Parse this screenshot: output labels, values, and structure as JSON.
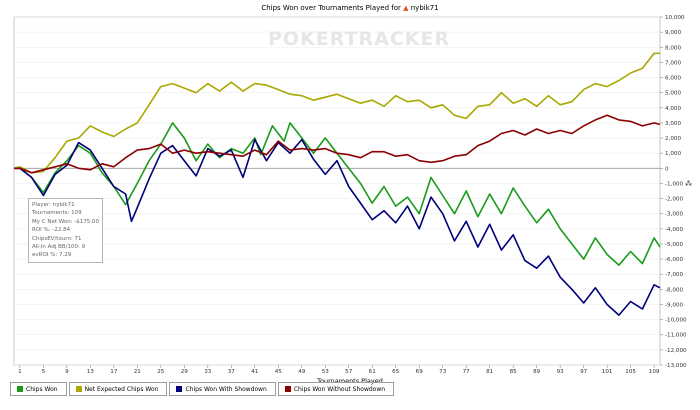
{
  "chart_data": {
    "type": "line",
    "title": "Chips Won over Tournaments Played for",
    "player_name": "nybik71",
    "xlabel": "Tournaments Played",
    "ylabel": "",
    "x_ticks": [
      1,
      5,
      9,
      13,
      17,
      21,
      25,
      29,
      33,
      37,
      41,
      45,
      49,
      53,
      57,
      61,
      65,
      69,
      73,
      77,
      81,
      85,
      89,
      93,
      97,
      101,
      105,
      109
    ],
    "xlim": [
      0,
      110
    ],
    "ylim": [
      -13000,
      10000
    ],
    "y_ticks": [
      10000,
      9000,
      8000,
      7000,
      6000,
      5000,
      4000,
      3000,
      2000,
      1000,
      0,
      -1000,
      -2000,
      -3000,
      -4000,
      -5000,
      -6000,
      -7000,
      -8000,
      -9000,
      -10000,
      -11000,
      -12000,
      -13000
    ],
    "y_tick_labels": [
      "10,000",
      "9,000",
      "8,000",
      "7,000",
      "6,000",
      "5,000",
      "4,000",
      "3,000",
      "2,000",
      "1,000",
      "0",
      "-1,000",
      "-2,000",
      "-3,000",
      "-4,000",
      "-5,000",
      "-6,000",
      "-7,000",
      "-8,000",
      "-9,000",
      "-10,000",
      "-11,000",
      "-12,000",
      "-13,000"
    ],
    "grid": true,
    "legend_position": "bottom",
    "series": [
      {
        "name": "Chips Won",
        "color": "#1a9b1a",
        "points": [
          [
            0,
            0
          ],
          [
            1,
            0
          ],
          [
            3,
            -600
          ],
          [
            5,
            -1600
          ],
          [
            7,
            -300
          ],
          [
            9,
            500
          ],
          [
            11,
            1500
          ],
          [
            13,
            1000
          ],
          [
            15,
            -300
          ],
          [
            17,
            -1200
          ],
          [
            19,
            -2400
          ],
          [
            21,
            -1000
          ],
          [
            23,
            500
          ],
          [
            25,
            1600
          ],
          [
            27,
            3000
          ],
          [
            29,
            2000
          ],
          [
            31,
            500
          ],
          [
            33,
            1600
          ],
          [
            35,
            700
          ],
          [
            37,
            1300
          ],
          [
            39,
            1000
          ],
          [
            41,
            2000
          ],
          [
            42,
            900
          ],
          [
            44,
            2800
          ],
          [
            46,
            1800
          ],
          [
            47,
            3000
          ],
          [
            49,
            2000
          ],
          [
            51,
            1000
          ],
          [
            53,
            2000
          ],
          [
            55,
            1000
          ],
          [
            57,
            0
          ],
          [
            59,
            -1000
          ],
          [
            61,
            -2300
          ],
          [
            63,
            -1200
          ],
          [
            65,
            -2500
          ],
          [
            67,
            -1900
          ],
          [
            69,
            -3000
          ],
          [
            71,
            -600
          ],
          [
            73,
            -1800
          ],
          [
            75,
            -3000
          ],
          [
            77,
            -1500
          ],
          [
            79,
            -3200
          ],
          [
            81,
            -1700
          ],
          [
            83,
            -3000
          ],
          [
            85,
            -1300
          ],
          [
            87,
            -2500
          ],
          [
            89,
            -3600
          ],
          [
            91,
            -2700
          ],
          [
            93,
            -4000
          ],
          [
            95,
            -5000
          ],
          [
            97,
            -6000
          ],
          [
            99,
            -4600
          ],
          [
            101,
            -5700
          ],
          [
            103,
            -6400
          ],
          [
            105,
            -5500
          ],
          [
            107,
            -6300
          ],
          [
            109,
            -4600
          ],
          [
            110,
            -5200
          ]
        ]
      },
      {
        "name": "Net Expected Chips Won",
        "color": "#a8a800",
        "points": [
          [
            0,
            0
          ],
          [
            1,
            100
          ],
          [
            3,
            -300
          ],
          [
            5,
            -200
          ],
          [
            7,
            700
          ],
          [
            9,
            1800
          ],
          [
            11,
            2000
          ],
          [
            13,
            2800
          ],
          [
            15,
            2400
          ],
          [
            17,
            2100
          ],
          [
            19,
            2600
          ],
          [
            21,
            3000
          ],
          [
            23,
            4200
          ],
          [
            25,
            5400
          ],
          [
            27,
            5600
          ],
          [
            29,
            5300
          ],
          [
            31,
            5000
          ],
          [
            33,
            5600
          ],
          [
            35,
            5100
          ],
          [
            37,
            5700
          ],
          [
            39,
            5100
          ],
          [
            41,
            5600
          ],
          [
            43,
            5500
          ],
          [
            45,
            5200
          ],
          [
            47,
            4900
          ],
          [
            49,
            4800
          ],
          [
            51,
            4500
          ],
          [
            53,
            4700
          ],
          [
            55,
            4900
          ],
          [
            57,
            4600
          ],
          [
            59,
            4300
          ],
          [
            61,
            4500
          ],
          [
            63,
            4100
          ],
          [
            65,
            4800
          ],
          [
            67,
            4400
          ],
          [
            69,
            4500
          ],
          [
            71,
            4000
          ],
          [
            73,
            4200
          ],
          [
            75,
            3500
          ],
          [
            77,
            3300
          ],
          [
            79,
            4100
          ],
          [
            81,
            4200
          ],
          [
            83,
            5000
          ],
          [
            85,
            4300
          ],
          [
            87,
            4600
          ],
          [
            89,
            4100
          ],
          [
            91,
            4800
          ],
          [
            93,
            4200
          ],
          [
            95,
            4400
          ],
          [
            97,
            5200
          ],
          [
            99,
            5600
          ],
          [
            101,
            5400
          ],
          [
            103,
            5800
          ],
          [
            105,
            6300
          ],
          [
            107,
            6600
          ],
          [
            109,
            7600
          ],
          [
            110,
            7600
          ]
        ]
      },
      {
        "name": "Chips Won With Showdown",
        "color": "#00007a",
        "points": [
          [
            0,
            0
          ],
          [
            1,
            0
          ],
          [
            3,
            -600
          ],
          [
            5,
            -1800
          ],
          [
            7,
            -400
          ],
          [
            9,
            200
          ],
          [
            11,
            1700
          ],
          [
            13,
            1200
          ],
          [
            15,
            0
          ],
          [
            17,
            -1200
          ],
          [
            19,
            -1700
          ],
          [
            20,
            -3500
          ],
          [
            21,
            -2600
          ],
          [
            23,
            -700
          ],
          [
            25,
            1000
          ],
          [
            27,
            1500
          ],
          [
            29,
            500
          ],
          [
            31,
            -500
          ],
          [
            33,
            1300
          ],
          [
            35,
            800
          ],
          [
            37,
            1200
          ],
          [
            39,
            -600
          ],
          [
            41,
            1900
          ],
          [
            43,
            500
          ],
          [
            45,
            1700
          ],
          [
            47,
            1000
          ],
          [
            49,
            1900
          ],
          [
            51,
            600
          ],
          [
            53,
            -400
          ],
          [
            55,
            500
          ],
          [
            57,
            -1200
          ],
          [
            59,
            -2300
          ],
          [
            61,
            -3400
          ],
          [
            63,
            -2800
          ],
          [
            65,
            -3600
          ],
          [
            67,
            -2500
          ],
          [
            69,
            -4000
          ],
          [
            71,
            -1900
          ],
          [
            73,
            -3000
          ],
          [
            75,
            -4800
          ],
          [
            77,
            -3500
          ],
          [
            79,
            -5200
          ],
          [
            81,
            -3700
          ],
          [
            83,
            -5400
          ],
          [
            85,
            -4400
          ],
          [
            87,
            -6100
          ],
          [
            89,
            -6600
          ],
          [
            91,
            -5800
          ],
          [
            93,
            -7200
          ],
          [
            95,
            -8000
          ],
          [
            97,
            -8900
          ],
          [
            99,
            -7900
          ],
          [
            101,
            -9000
          ],
          [
            103,
            -9700
          ],
          [
            105,
            -8800
          ],
          [
            107,
            -9300
          ],
          [
            109,
            -7700
          ],
          [
            110,
            -7900
          ]
        ]
      },
      {
        "name": "Chips Won Without Showdown",
        "color": "#8b0000",
        "points": [
          [
            0,
            0
          ],
          [
            1,
            0
          ],
          [
            3,
            -300
          ],
          [
            5,
            -100
          ],
          [
            7,
            100
          ],
          [
            9,
            300
          ],
          [
            11,
            0
          ],
          [
            13,
            -100
          ],
          [
            15,
            300
          ],
          [
            17,
            100
          ],
          [
            19,
            700
          ],
          [
            21,
            1200
          ],
          [
            23,
            1300
          ],
          [
            25,
            1600
          ],
          [
            27,
            1000
          ],
          [
            29,
            1200
          ],
          [
            31,
            1000
          ],
          [
            33,
            1100
          ],
          [
            35,
            1000
          ],
          [
            37,
            900
          ],
          [
            39,
            800
          ],
          [
            41,
            1200
          ],
          [
            43,
            900
          ],
          [
            45,
            1800
          ],
          [
            47,
            1200
          ],
          [
            49,
            1300
          ],
          [
            51,
            1200
          ],
          [
            53,
            1300
          ],
          [
            55,
            1000
          ],
          [
            57,
            900
          ],
          [
            59,
            700
          ],
          [
            61,
            1100
          ],
          [
            63,
            1100
          ],
          [
            65,
            800
          ],
          [
            67,
            900
          ],
          [
            69,
            500
          ],
          [
            71,
            400
          ],
          [
            73,
            500
          ],
          [
            75,
            800
          ],
          [
            77,
            900
          ],
          [
            79,
            1500
          ],
          [
            81,
            1800
          ],
          [
            83,
            2300
          ],
          [
            85,
            2500
          ],
          [
            87,
            2200
          ],
          [
            89,
            2600
          ],
          [
            91,
            2300
          ],
          [
            93,
            2500
          ],
          [
            95,
            2300
          ],
          [
            97,
            2800
          ],
          [
            99,
            3200
          ],
          [
            101,
            3500
          ],
          [
            103,
            3200
          ],
          [
            105,
            3100
          ],
          [
            107,
            2800
          ],
          [
            109,
            3000
          ],
          [
            110,
            2900
          ]
        ]
      }
    ]
  },
  "watermark": "POKERTRACKER",
  "infobox": {
    "lines": [
      "Player: nybik71",
      "Tournaments: 109",
      "My C Net Won: -$175.00",
      "ROI %: -22.84",
      "ChipsEV/tourn: 71",
      "All-In Adj BB/100: 9",
      "evROI %: 7.29"
    ]
  },
  "legend": [
    "Chips Won",
    "Net Expected Chips Won",
    "Chips Won With Showdown",
    "Chips Won Without Showdown"
  ]
}
